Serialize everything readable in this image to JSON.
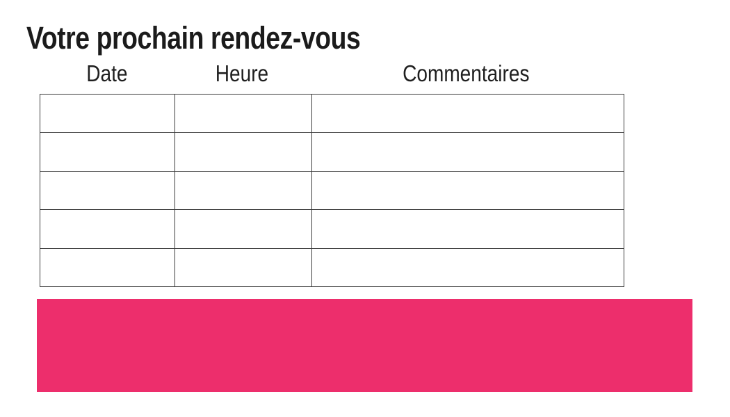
{
  "page": {
    "title": "Votre prochain rendez-vous",
    "background_color": "#ffffff"
  },
  "table": {
    "columns": [
      {
        "label": "Date"
      },
      {
        "label": "Heure"
      },
      {
        "label": "Commentaires"
      }
    ],
    "rows": 5,
    "cells_empty": true,
    "border_color": "#3b3b3b"
  },
  "highlight_block": {
    "color": "#ED2E6C",
    "text": ""
  }
}
